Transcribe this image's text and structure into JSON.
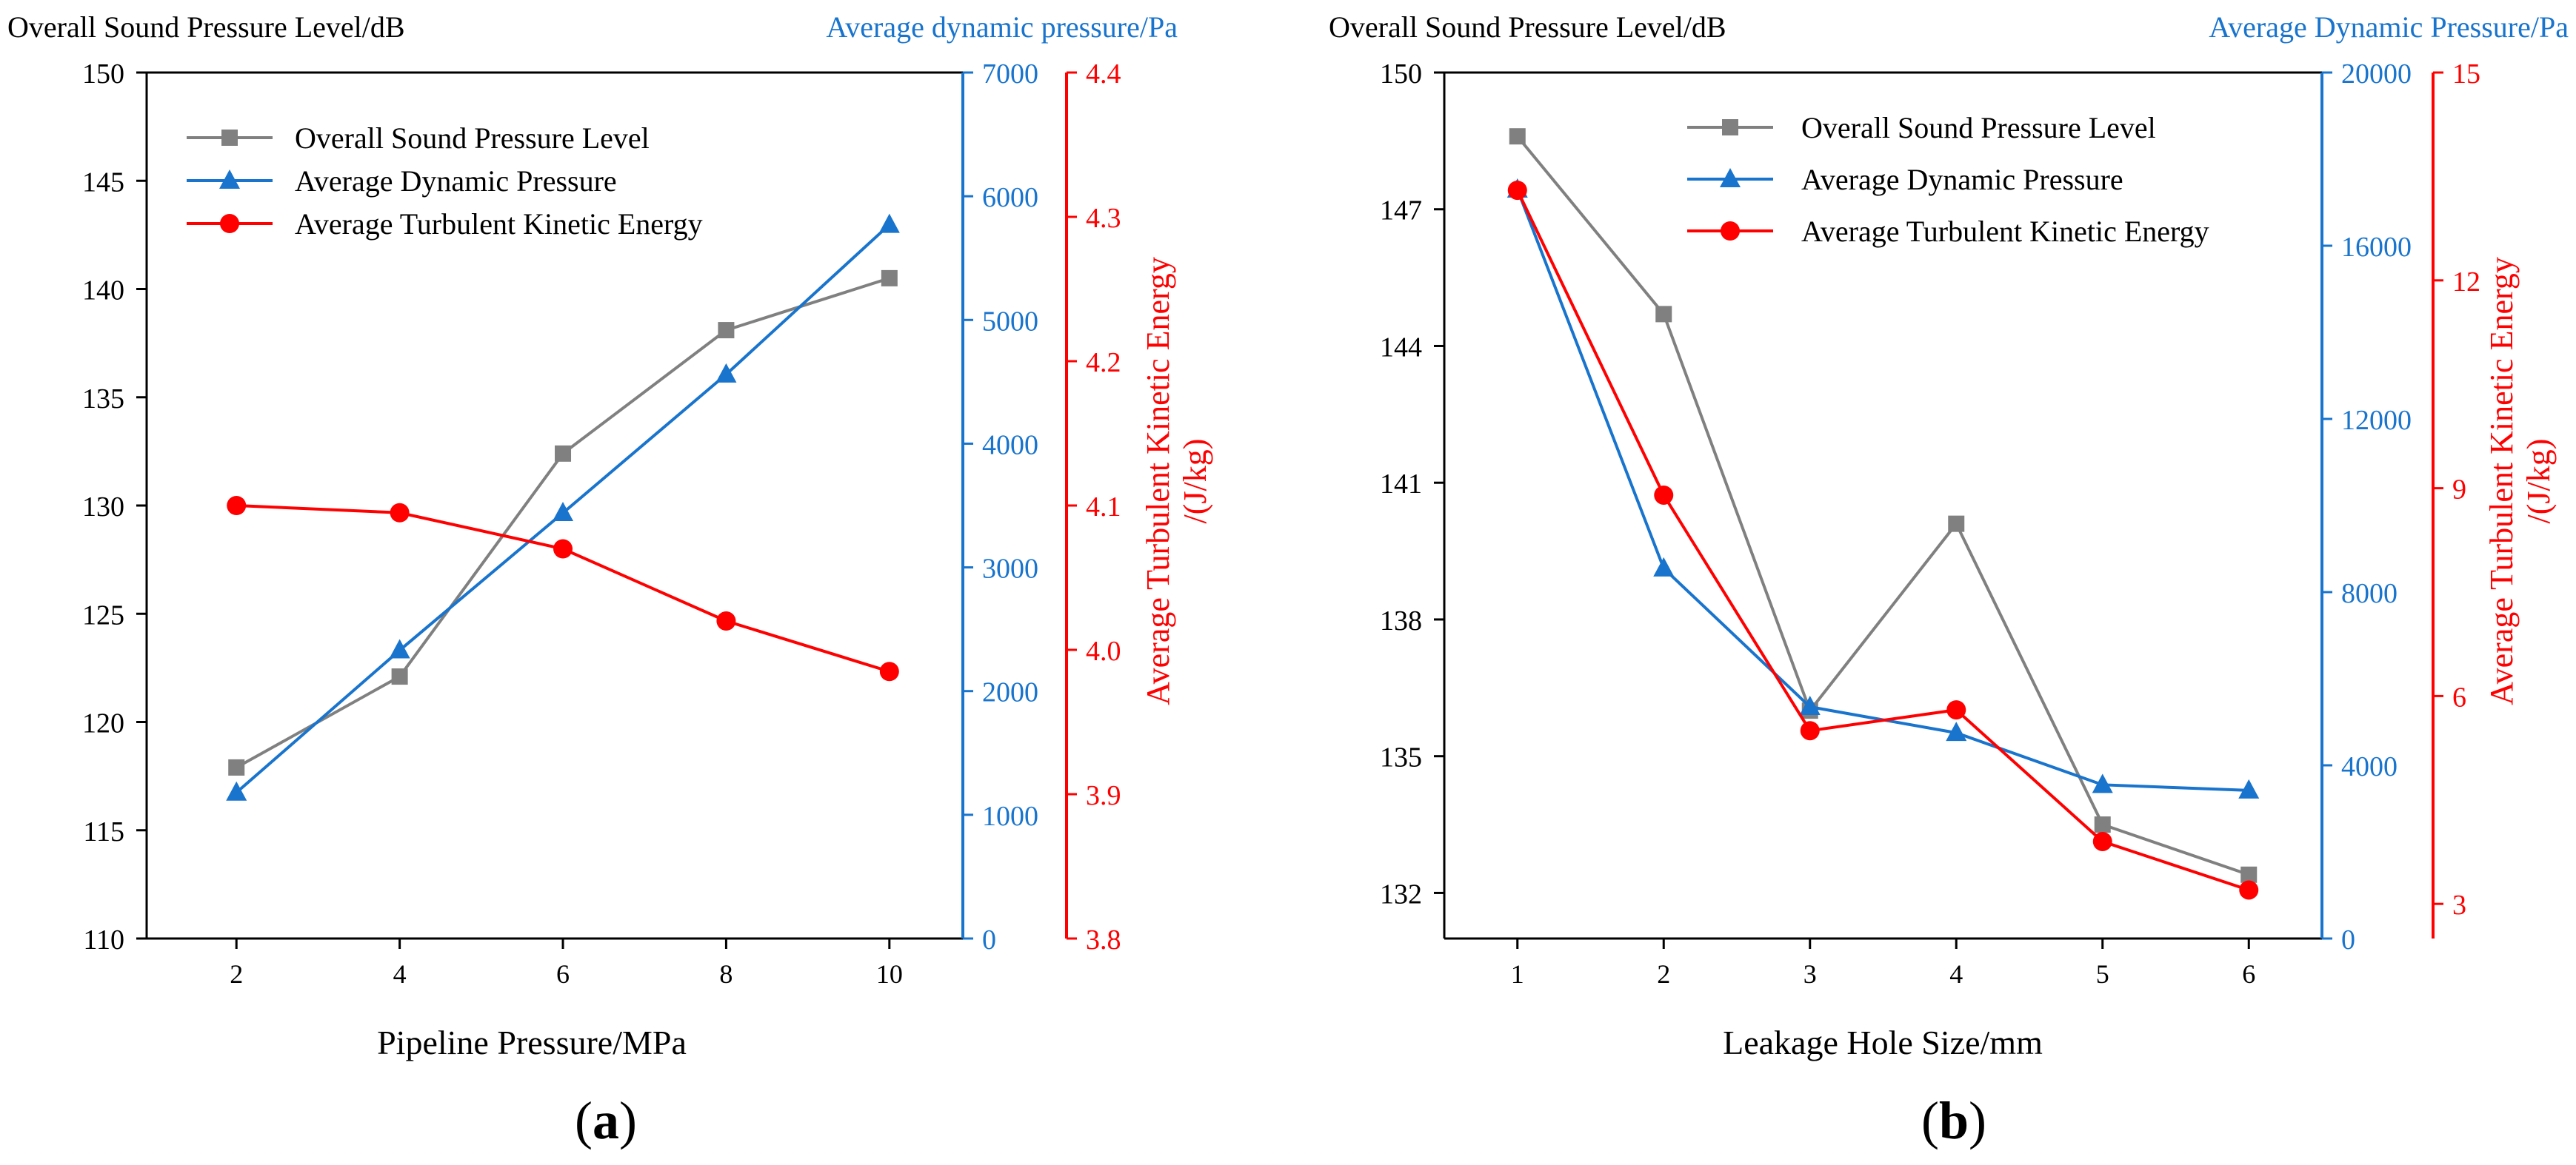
{
  "colors": {
    "spl": "#808080",
    "pressure": "#1874CD",
    "tke": "#FF0000",
    "axis": "#000000"
  },
  "chart_data": [
    {
      "panel_label": "a",
      "type": "line",
      "xlabel": "Pipeline Pressure/MPa",
      "x": [
        2,
        4,
        6,
        8,
        10
      ],
      "xticks": [
        "2",
        "4",
        "6",
        "8",
        "10"
      ],
      "xlim": [
        0.9,
        10.9
      ],
      "axes": {
        "left": {
          "title": "Overall Sound Pressure Level/dB",
          "ylim": [
            110,
            150
          ],
          "ticks": [
            110,
            115,
            120,
            125,
            130,
            135,
            140,
            145,
            150
          ]
        },
        "right1": {
          "title": "Average dynamic pressure/Pa",
          "ylim": [
            0,
            7000
          ],
          "ticks": [
            0,
            1000,
            2000,
            3000,
            4000,
            5000,
            6000,
            7000
          ]
        },
        "right2": {
          "title_line1": "Average Turbulent Kinetic Energy",
          "title_line2": "/(J/kg)",
          "ylim": [
            3.8,
            4.4
          ],
          "ticks": [
            "3.8",
            "3.9",
            "4.0",
            "4.1",
            "4.2",
            "4.3",
            "4.4"
          ]
        }
      },
      "series": [
        {
          "name": "Overall Sound Pressure Level",
          "axis": "left",
          "marker": "square",
          "values": [
            117.9,
            122.1,
            132.4,
            138.1,
            140.5
          ]
        },
        {
          "name": "Average Dynamic Pressure",
          "axis": "right1",
          "marker": "triangle",
          "values": [
            1180,
            2330,
            3440,
            4560,
            5770
          ]
        },
        {
          "name": "Average Turbulent Kinetic Energy",
          "axis": "right2",
          "marker": "circle",
          "values": [
            4.1,
            4.095,
            4.07,
            4.02,
            3.985
          ]
        }
      ],
      "legend": "top-left"
    },
    {
      "panel_label": "b",
      "type": "line",
      "xlabel": "Leakage Hole Size/mm",
      "x": [
        1,
        2,
        3,
        4,
        5,
        6
      ],
      "xticks": [
        "1",
        "2",
        "3",
        "4",
        "5",
        "6"
      ],
      "xlim": [
        0.5,
        6.5
      ],
      "axes": {
        "left": {
          "title": "Overall Sound Pressure Level/dB",
          "ylim": [
            131,
            150
          ],
          "ticks": [
            132,
            135,
            138,
            141,
            144,
            147,
            150
          ]
        },
        "right1": {
          "title": "Average Dynamic Pressure/Pa",
          "ylim": [
            0,
            20000
          ],
          "ticks": [
            0,
            4000,
            8000,
            12000,
            16000,
            20000
          ]
        },
        "right2": {
          "title_line1": "Average Turbulent Kinetic Energy",
          "title_line2": "/(J/kg)",
          "ylim": [
            2.5,
            15
          ],
          "ticks": [
            "3",
            "6",
            "9",
            "12",
            "15"
          ]
        }
      },
      "series": [
        {
          "name": "Overall Sound Pressure Level",
          "axis": "left",
          "marker": "square",
          "values": [
            148.6,
            144.7,
            136.0,
            140.1,
            133.5,
            132.4
          ]
        },
        {
          "name": "Average Dynamic Pressure",
          "axis": "right1",
          "marker": "triangle",
          "values": [
            17300,
            8550,
            5350,
            4750,
            3550,
            3420
          ]
        },
        {
          "name": "Average Turbulent Kinetic Energy",
          "axis": "right2",
          "marker": "circle",
          "values": [
            13.3,
            8.9,
            5.5,
            5.8,
            3.9,
            3.2
          ]
        }
      ],
      "legend": "top-right"
    }
  ]
}
